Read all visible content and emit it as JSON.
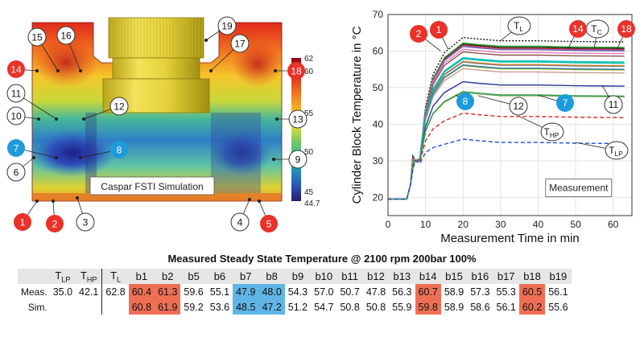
{
  "simulation_figure": {
    "caption": "Caspar FSTI Simulation",
    "colorbar": {
      "ticks": [
        "62",
        "60",
        "55",
        "50",
        "45",
        "44.7"
      ]
    },
    "markers": [
      {
        "label": "1",
        "kind": "hot"
      },
      {
        "label": "2",
        "kind": "hot"
      },
      {
        "label": "3",
        "kind": "plain"
      },
      {
        "label": "4",
        "kind": "plain"
      },
      {
        "label": "5",
        "kind": "hot"
      },
      {
        "label": "6",
        "kind": "plain"
      },
      {
        "label": "7",
        "kind": "cold"
      },
      {
        "label": "8",
        "kind": "cold"
      },
      {
        "label": "9",
        "kind": "plain"
      },
      {
        "label": "10",
        "kind": "plain"
      },
      {
        "label": "11",
        "kind": "plain"
      },
      {
        "label": "12",
        "kind": "plain"
      },
      {
        "label": "13",
        "kind": "plain"
      },
      {
        "label": "14",
        "kind": "hot"
      },
      {
        "label": "15",
        "kind": "plain"
      },
      {
        "label": "16",
        "kind": "plain"
      },
      {
        "label": "17",
        "kind": "plain"
      },
      {
        "label": "18",
        "kind": "hot"
      },
      {
        "label": "19",
        "kind": "plain"
      }
    ]
  },
  "chart_data": {
    "type": "line",
    "title": "",
    "xlabel": "Measurement Time in min",
    "ylabel": "Cylinder Block Temperature in °C",
    "xlim": [
      0,
      65
    ],
    "ylim": [
      15,
      70
    ],
    "xticks": [
      0,
      10,
      20,
      30,
      40,
      50,
      60
    ],
    "yticks": [
      20,
      30,
      40,
      50,
      60,
      70
    ],
    "grid": true,
    "box_label": "Measurement",
    "series": [
      {
        "name": "TL",
        "color": "#111111",
        "dash": "dotted",
        "steady": 62.8
      },
      {
        "name": "TC",
        "color": "#222222",
        "dash": "solid",
        "steady": 61.0
      },
      {
        "name": "b1",
        "color": "#1a237e",
        "dash": "solid",
        "steady": 60.4
      },
      {
        "name": "b2",
        "color": "#2ca02c",
        "dash": "solid",
        "steady": 61.3
      },
      {
        "name": "b14",
        "color": "#d62728",
        "dash": "solid",
        "steady": 60.7
      },
      {
        "name": "b18",
        "color": "#9467bd",
        "dash": "solid",
        "steady": 60.5
      },
      {
        "name": "b5",
        "color": "#e377c2",
        "dash": "solid",
        "steady": 59.6
      },
      {
        "name": "b15",
        "color": "#8c564b",
        "dash": "solid",
        "steady": 58.9
      },
      {
        "name": "b16",
        "color": "#17becf",
        "dash": "solid",
        "steady": 57.3
      },
      {
        "name": "b13",
        "color": "#ff7f0e",
        "dash": "solid",
        "steady": 56.3
      },
      {
        "name": "b19",
        "color": "#7f7f7f",
        "dash": "solid",
        "steady": 56.1
      },
      {
        "name": "b6",
        "color": "#bcbd22",
        "dash": "solid",
        "steady": 55.1
      },
      {
        "name": "b17",
        "color": "#1f77b4",
        "dash": "solid",
        "steady": 55.3
      },
      {
        "name": "b9",
        "color": "#c49c94",
        "dash": "solid",
        "steady": 54.3
      },
      {
        "name": "b10",
        "color": "#00bfa0",
        "dash": "solid",
        "steady": 57.0
      },
      {
        "name": "b11",
        "color": "#283593",
        "dash": "solid",
        "steady": 50.7
      },
      {
        "name": "b12",
        "color": "#8a8a00",
        "dash": "solid",
        "steady": 47.8
      },
      {
        "name": "b7",
        "color": "#4db6ac",
        "dash": "solid",
        "steady": 47.9
      },
      {
        "name": "b8",
        "color": "#43a047",
        "dash": "solid",
        "steady": 48.0
      },
      {
        "name": "THP",
        "color": "#d62728",
        "dash": "dashed",
        "steady": 42.1
      },
      {
        "name": "TLP",
        "color": "#1f4fd0",
        "dash": "dashed",
        "steady": 35.0
      }
    ],
    "annotations": [
      {
        "label": "2",
        "kind": "hot"
      },
      {
        "label": "1",
        "kind": "hot"
      },
      {
        "label": "TL",
        "kind": "plain"
      },
      {
        "label": "TC",
        "kind": "plain"
      },
      {
        "label": "14",
        "kind": "hot"
      },
      {
        "label": "18",
        "kind": "hot"
      },
      {
        "label": "8",
        "kind": "cold"
      },
      {
        "label": "12",
        "kind": "plain"
      },
      {
        "label": "7",
        "kind": "cold"
      },
      {
        "label": "11",
        "kind": "plain"
      },
      {
        "label": "THP",
        "kind": "plain"
      },
      {
        "label": "TLP",
        "kind": "plain"
      }
    ]
  },
  "table": {
    "title": "Measured Steady State Temperature @ 2100 rpm 200bar 100%",
    "headers": [
      "T_LP",
      "T_HP",
      "T_L",
      "b1",
      "b2",
      "b5",
      "b6",
      "b7",
      "b8",
      "b9",
      "b10",
      "b11",
      "b12",
      "b13",
      "b14",
      "b15",
      "b16",
      "b17",
      "b18",
      "b19"
    ],
    "rows": [
      {
        "label": "Meas.",
        "values": [
          "35.0",
          "42.1",
          "62.8",
          "60.4",
          "61.3",
          "59.6",
          "55.1",
          "47.9",
          "48.0",
          "54.3",
          "57.0",
          "50.7",
          "47.8",
          "56.3",
          "60.7",
          "58.9",
          "57.3",
          "55.3",
          "60.5",
          "56.1"
        ]
      },
      {
        "label": "Sim.",
        "values": [
          "",
          "",
          "",
          "60.8",
          "61.9",
          "59.2",
          "53.6",
          "48.5",
          "47.2",
          "51.2",
          "54.7",
          "50.8",
          "50.8",
          "55.9",
          "59.8",
          "58.9",
          "58.6",
          "56.1",
          "60.2",
          "55.6"
        ]
      }
    ],
    "highlights": {
      "hot": [
        "b1",
        "b2",
        "b14",
        "b18"
      ],
      "cold": [
        "b7",
        "b8"
      ]
    }
  },
  "colors": {
    "hot": "#e8322a",
    "cold": "#1e9bdc",
    "hot_cell": "#ef6f55",
    "cold_cell": "#5fb6e6"
  }
}
